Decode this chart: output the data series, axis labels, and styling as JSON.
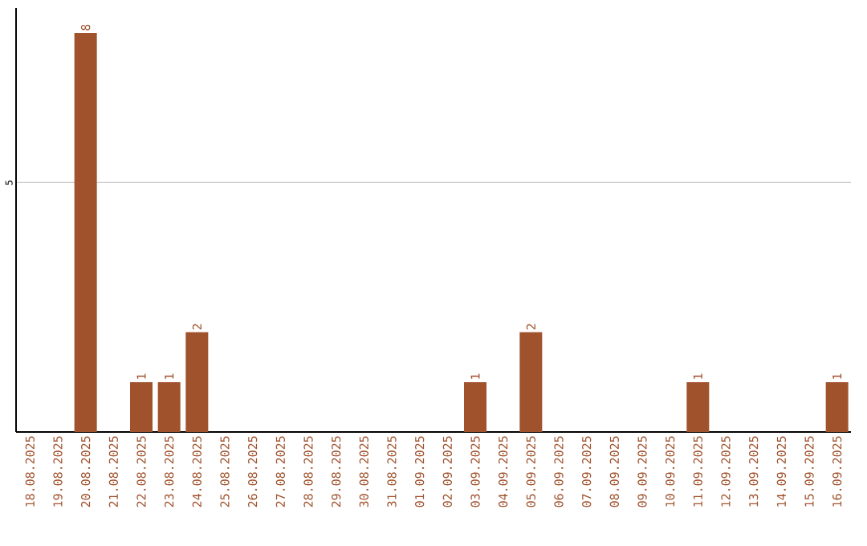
{
  "chart_data": {
    "type": "bar",
    "categories": [
      "18.08.2025",
      "19.08.2025",
      "20.08.2025",
      "21.08.2025",
      "22.08.2025",
      "23.08.2025",
      "24.08.2025",
      "25.08.2025",
      "26.08.2025",
      "27.08.2025",
      "28.08.2025",
      "29.08.2025",
      "30.08.2025",
      "31.08.2025",
      "01.09.2025",
      "02.09.2025",
      "03.09.2025",
      "04.09.2025",
      "05.09.2025",
      "06.09.2025",
      "07.09.2025",
      "08.09.2025",
      "09.09.2025",
      "10.09.2025",
      "11.09.2025",
      "12.09.2025",
      "13.09.2025",
      "14.09.2025",
      "15.09.2025",
      "16.09.2025"
    ],
    "values": [
      0,
      0,
      8,
      0,
      1,
      1,
      2,
      0,
      0,
      0,
      0,
      0,
      0,
      0,
      0,
      0,
      1,
      0,
      2,
      0,
      0,
      0,
      0,
      0,
      1,
      0,
      0,
      0,
      0,
      1
    ],
    "value_labels": [
      null,
      null,
      "8",
      null,
      "1",
      "1",
      "2",
      null,
      null,
      null,
      null,
      null,
      null,
      null,
      null,
      null,
      "1",
      null,
      "2",
      null,
      null,
      null,
      null,
      null,
      "1",
      null,
      null,
      null,
      null,
      "1"
    ],
    "color": "#a0522d",
    "ylim": [
      0,
      8.5
    ],
    "yticks": [
      5
    ],
    "grid": "y"
  }
}
